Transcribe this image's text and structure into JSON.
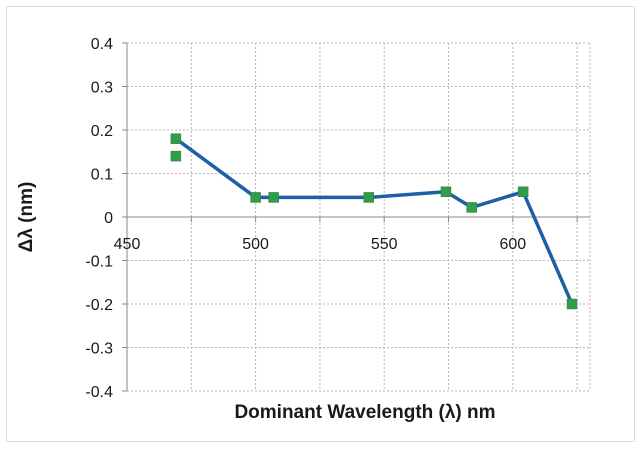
{
  "chart_data": {
    "type": "line",
    "title": "",
    "xlabel": "Dominant Wavelength (λ) nm",
    "ylabel": "Δλ (nm)",
    "xlim": [
      450,
      630
    ],
    "ylim": [
      -0.4,
      0.4
    ],
    "x_ticks": [
      450,
      500,
      550,
      600
    ],
    "y_ticks": [
      0.4,
      0.3,
      0.2,
      0.1,
      0,
      -0.1,
      -0.2,
      -0.3,
      -0.4
    ],
    "grid": true,
    "legend": "none",
    "series": [
      {
        "color": "#1f5fa8",
        "marker_color": "#2e9e4a",
        "points": [
          {
            "x": 469,
            "y": 0.18
          },
          {
            "x": 500,
            "y": 0.045
          },
          {
            "x": 507,
            "y": 0.045
          },
          {
            "x": 544,
            "y": 0.045
          },
          {
            "x": 574,
            "y": 0.058
          },
          {
            "x": 584,
            "y": 0.022
          },
          {
            "x": 604,
            "y": 0.058
          },
          {
            "x": 623,
            "y": -0.2
          }
        ]
      }
    ],
    "extra_markers": [
      {
        "x": 469,
        "y": 0.14
      }
    ]
  }
}
